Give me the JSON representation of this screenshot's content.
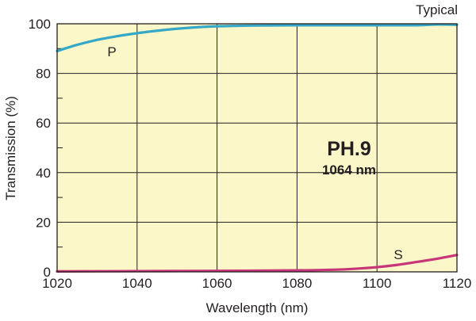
{
  "chart_data": {
    "type": "line",
    "title": "",
    "xlabel": "Wavelength (nm)",
    "ylabel": "Transmission (%)",
    "xlim": [
      1020,
      1120
    ],
    "ylim": [
      0,
      100
    ],
    "x_ticks": [
      1020,
      1040,
      1060,
      1080,
      1100,
      1120
    ],
    "y_ticks": [
      0,
      20,
      40,
      60,
      80,
      100
    ],
    "grid": true,
    "note": "Typical",
    "annotation": {
      "title": "PH.9",
      "subtitle": "1064 nm"
    },
    "colors": {
      "plot_background": "#fbf7c8",
      "grid": "#231f20",
      "p_series": "#35a8c8",
      "s_series": "#c8367a"
    },
    "series": [
      {
        "name": "P",
        "x": [
          1020,
          1025,
          1030,
          1035,
          1040,
          1045,
          1050,
          1055,
          1060,
          1070,
          1080,
          1090,
          1100,
          1110,
          1115,
          1120
        ],
        "y": [
          89,
          91.5,
          93.5,
          95,
          96.2,
          97.2,
          98,
          98.6,
          99,
          99.3,
          99.4,
          99.4,
          99.4,
          99.4,
          99.7,
          99.6
        ]
      },
      {
        "name": "S",
        "x": [
          1020,
          1040,
          1060,
          1080,
          1090,
          1095,
          1100,
          1105,
          1110,
          1115,
          1120
        ],
        "y": [
          0.2,
          0.3,
          0.4,
          0.6,
          0.9,
          1.3,
          1.9,
          2.8,
          4,
          5.3,
          6.8
        ]
      }
    ]
  }
}
